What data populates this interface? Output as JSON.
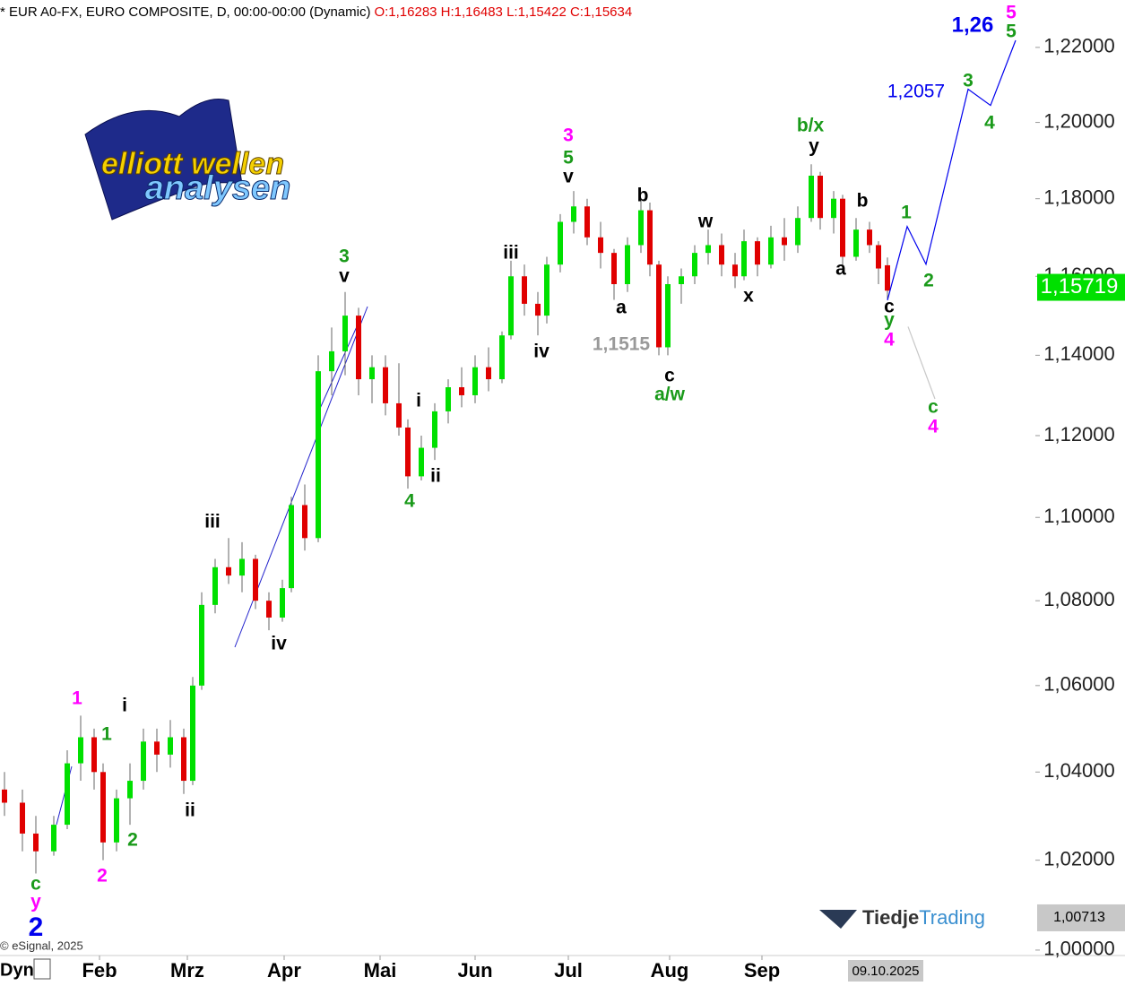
{
  "chart_data": {
    "type": "candlestick",
    "title": "* EUR A0-FX, EURO COMPOSITE, D, 00:00-00:00 (Dynamic)",
    "ohlc_label": "O:1,16283 H:1,16483 L:1,15422 C:1,15634",
    "log_scale": true,
    "up_color": "#00e000",
    "down_color": "#e00000",
    "xlim": [
      -1,
      230
    ],
    "ylim": [
      0.999,
      1.2328
    ],
    "yticks": [
      {
        "value": 1.0,
        "label": "1,00000"
      },
      {
        "value": 1.02,
        "label": "1,02000"
      },
      {
        "value": 1.04,
        "label": "1,04000"
      },
      {
        "value": 1.06,
        "label": "1,06000"
      },
      {
        "value": 1.08,
        "label": "1,08000"
      },
      {
        "value": 1.1,
        "label": "1,10000"
      },
      {
        "value": 1.12,
        "label": "1,12000"
      },
      {
        "value": 1.14,
        "label": "1,14000"
      },
      {
        "value": 1.16,
        "label": "1,16000"
      },
      {
        "value": 1.18,
        "label": "1,18000"
      },
      {
        "value": 1.2,
        "label": "1,20000"
      },
      {
        "value": 1.22,
        "label": "1,22000"
      }
    ],
    "xticks": [
      {
        "value": 21.2,
        "label": "Feb"
      },
      {
        "value": 40.8,
        "label": "Mrz"
      },
      {
        "value": 62.4,
        "label": "Apr"
      },
      {
        "value": 83.8,
        "label": "Mai"
      },
      {
        "value": 105,
        "label": "Jun"
      },
      {
        "value": 125.8,
        "label": "Jul"
      },
      {
        "value": 148.4,
        "label": "Aug"
      },
      {
        "value": 169,
        "label": "Sep"
      }
    ],
    "x": [
      0,
      4,
      7,
      11,
      14,
      17,
      20,
      22,
      25,
      28,
      31,
      34,
      37,
      40,
      42,
      44,
      47,
      50,
      53,
      56,
      59,
      62,
      64,
      67,
      70,
      73,
      76,
      79,
      82,
      85,
      88,
      90,
      93,
      96,
      99,
      102,
      105,
      108,
      111,
      113,
      116,
      119,
      121,
      124,
      127,
      130,
      133,
      136,
      139,
      142,
      144,
      146,
      148,
      151,
      154,
      157,
      160,
      163,
      165,
      168,
      171,
      174,
      177,
      180,
      182,
      185,
      187,
      190,
      193,
      195,
      197
    ],
    "open": [
      1.036,
      1.033,
      1.026,
      1.022,
      1.028,
      1.042,
      1.048,
      1.04,
      1.024,
      1.034,
      1.038,
      1.047,
      1.044,
      1.048,
      1.038,
      1.06,
      1.079,
      1.088,
      1.086,
      1.09,
      1.08,
      1.076,
      1.083,
      1.103,
      1.095,
      1.136,
      1.141,
      1.15,
      1.134,
      1.137,
      1.128,
      1.122,
      1.11,
      1.117,
      1.126,
      1.132,
      1.13,
      1.137,
      1.134,
      1.145,
      1.16,
      1.153,
      1.15,
      1.163,
      1.174,
      1.178,
      1.17,
      1.166,
      1.158,
      1.168,
      1.177,
      1.163,
      1.142,
      1.158,
      1.16,
      1.166,
      1.168,
      1.163,
      1.16,
      1.169,
      1.163,
      1.17,
      1.168,
      1.175,
      1.186,
      1.175,
      1.18,
      1.165,
      1.172,
      1.168,
      1.16283
    ],
    "high": [
      1.04,
      1.036,
      1.03,
      1.03,
      1.045,
      1.053,
      1.05,
      1.042,
      1.036,
      1.042,
      1.05,
      1.05,
      1.052,
      1.05,
      1.062,
      1.082,
      1.09,
      1.095,
      1.094,
      1.091,
      1.082,
      1.085,
      1.105,
      1.108,
      1.14,
      1.147,
      1.156,
      1.152,
      1.14,
      1.14,
      1.138,
      1.124,
      1.12,
      1.128,
      1.134,
      1.137,
      1.14,
      1.142,
      1.146,
      1.164,
      1.163,
      1.156,
      1.165,
      1.176,
      1.182,
      1.18,
      1.174,
      1.167,
      1.17,
      1.18,
      1.179,
      1.164,
      1.16,
      1.162,
      1.168,
      1.172,
      1.171,
      1.166,
      1.172,
      1.17,
      1.173,
      1.175,
      1.178,
      1.189,
      1.187,
      1.182,
      1.181,
      1.175,
      1.174,
      1.169,
      1.16483
    ],
    "low": [
      1.03,
      1.022,
      1.017,
      1.021,
      1.027,
      1.038,
      1.036,
      1.02,
      1.022,
      1.028,
      1.036,
      1.04,
      1.041,
      1.035,
      1.037,
      1.059,
      1.077,
      1.084,
      1.082,
      1.078,
      1.073,
      1.075,
      1.082,
      1.092,
      1.094,
      1.13,
      1.135,
      1.13,
      1.128,
      1.125,
      1.12,
      1.107,
      1.109,
      1.114,
      1.123,
      1.127,
      1.128,
      1.131,
      1.133,
      1.144,
      1.15,
      1.145,
      1.148,
      1.161,
      1.171,
      1.168,
      1.162,
      1.154,
      1.156,
      1.166,
      1.16,
      1.14,
      1.14,
      1.153,
      1.158,
      1.163,
      1.16,
      1.157,
      1.159,
      1.16,
      1.162,
      1.164,
      1.166,
      1.174,
      1.172,
      1.171,
      1.162,
      1.164,
      1.166,
      1.158,
      1.15422
    ],
    "close": [
      1.033,
      1.026,
      1.022,
      1.028,
      1.042,
      1.048,
      1.04,
      1.024,
      1.034,
      1.038,
      1.047,
      1.044,
      1.048,
      1.038,
      1.06,
      1.079,
      1.088,
      1.086,
      1.09,
      1.08,
      1.076,
      1.083,
      1.103,
      1.095,
      1.136,
      1.141,
      1.15,
      1.134,
      1.137,
      1.128,
      1.122,
      1.11,
      1.117,
      1.126,
      1.132,
      1.13,
      1.137,
      1.134,
      1.145,
      1.16,
      1.153,
      1.15,
      1.163,
      1.174,
      1.178,
      1.17,
      1.166,
      1.158,
      1.168,
      1.177,
      1.163,
      1.142,
      1.158,
      1.16,
      1.166,
      1.168,
      1.163,
      1.16,
      1.169,
      1.163,
      1.17,
      1.168,
      1.175,
      1.186,
      1.175,
      1.18,
      1.165,
      1.172,
      1.168,
      1.162,
      1.15634
    ],
    "projections": [
      {
        "color": "#0000ee",
        "x": [
          197,
          201.4,
          205.6,
          215,
          220,
          225.6
        ],
        "values": [
          1.1539,
          1.1728,
          1.1631,
          1.2088,
          1.2045,
          1.2219
        ]
      },
      {
        "color": "#c8c8c8",
        "x": [
          201.6,
          207.6
        ],
        "values": [
          1.1472,
          1.1291
        ]
      }
    ],
    "markers": [
      {
        "value": 1.15719,
        "label": "1,15719",
        "color": "#00e000",
        "text_color": "#ffffff"
      },
      {
        "value": 1.00713,
        "label": "1,00713",
        "color": "#c8c8c8",
        "text_color": "#000000"
      }
    ],
    "annotations": [
      {
        "text": "c",
        "color": "#1a9a1a"
      },
      {
        "text": "y",
        "color": "#ff00ff"
      },
      {
        "text": "2",
        "color": "#0000ee"
      },
      {
        "text": "1",
        "color": "#ff00ff"
      },
      {
        "text": "i",
        "color": "#000000"
      },
      {
        "text": "1",
        "color": "#1a9a1a"
      },
      {
        "text": "2",
        "color": "#ff00ff"
      },
      {
        "text": "2",
        "color": "#1a9a1a"
      },
      {
        "text": "ii",
        "color": "#000000"
      },
      {
        "text": "iii",
        "color": "#000000"
      },
      {
        "text": "iv",
        "color": "#000000"
      },
      {
        "text": "3",
        "color": "#1a9a1a"
      },
      {
        "text": "v",
        "color": "#000000"
      },
      {
        "text": "i",
        "color": "#000000"
      },
      {
        "text": "ii",
        "color": "#000000"
      },
      {
        "text": "4",
        "color": "#1a9a1a"
      },
      {
        "text": "iii",
        "color": "#000000"
      },
      {
        "text": "iv",
        "color": "#000000"
      },
      {
        "text": "3",
        "color": "#ff00ff"
      },
      {
        "text": "5",
        "color": "#1a9a1a"
      },
      {
        "text": "v",
        "color": "#000000"
      },
      {
        "text": "b",
        "color": "#000000"
      },
      {
        "text": "a",
        "color": "#000000"
      },
      {
        "text": "c",
        "color": "#000000"
      },
      {
        "text": "a/w",
        "color": "#1a9a1a"
      },
      {
        "text": "w",
        "color": "#000000"
      },
      {
        "text": "x",
        "color": "#000000"
      },
      {
        "text": "b/x",
        "color": "#1a9a1a"
      },
      {
        "text": "y",
        "color": "#000000"
      },
      {
        "text": "b",
        "color": "#000000"
      },
      {
        "text": "a",
        "color": "#000000"
      },
      {
        "text": "c",
        "color": "#000000"
      },
      {
        "text": "y",
        "color": "#1a9a1a"
      },
      {
        "text": "4",
        "color": "#ff00ff"
      },
      {
        "text": "1",
        "color": "#1a9a1a"
      },
      {
        "text": "2",
        "color": "#1a9a1a"
      },
      {
        "text": "3",
        "color": "#1a9a1a"
      },
      {
        "text": "4",
        "color": "#1a9a1a"
      },
      {
        "text": "5",
        "color": "#ff00ff"
      },
      {
        "text": "5",
        "color": "#1a9a1a"
      },
      {
        "text": "c",
        "color": "#1a9a1a"
      },
      {
        "text": "4",
        "color": "#ff00ff"
      },
      {
        "text": "1,26",
        "color": "#0000ee"
      },
      {
        "text": "1,2057",
        "color": "#0000ee"
      },
      {
        "text": "1,1515",
        "color": "#999999"
      }
    ],
    "logo": {
      "line1": "elliott wellen",
      "line2": "analysen"
    },
    "watermark": {
      "part1": "Tiedje",
      "part2": "Trading"
    },
    "copyright": "© eSignal, 2025",
    "period_label": "Dyn",
    "date_label": "09.10.2025"
  }
}
